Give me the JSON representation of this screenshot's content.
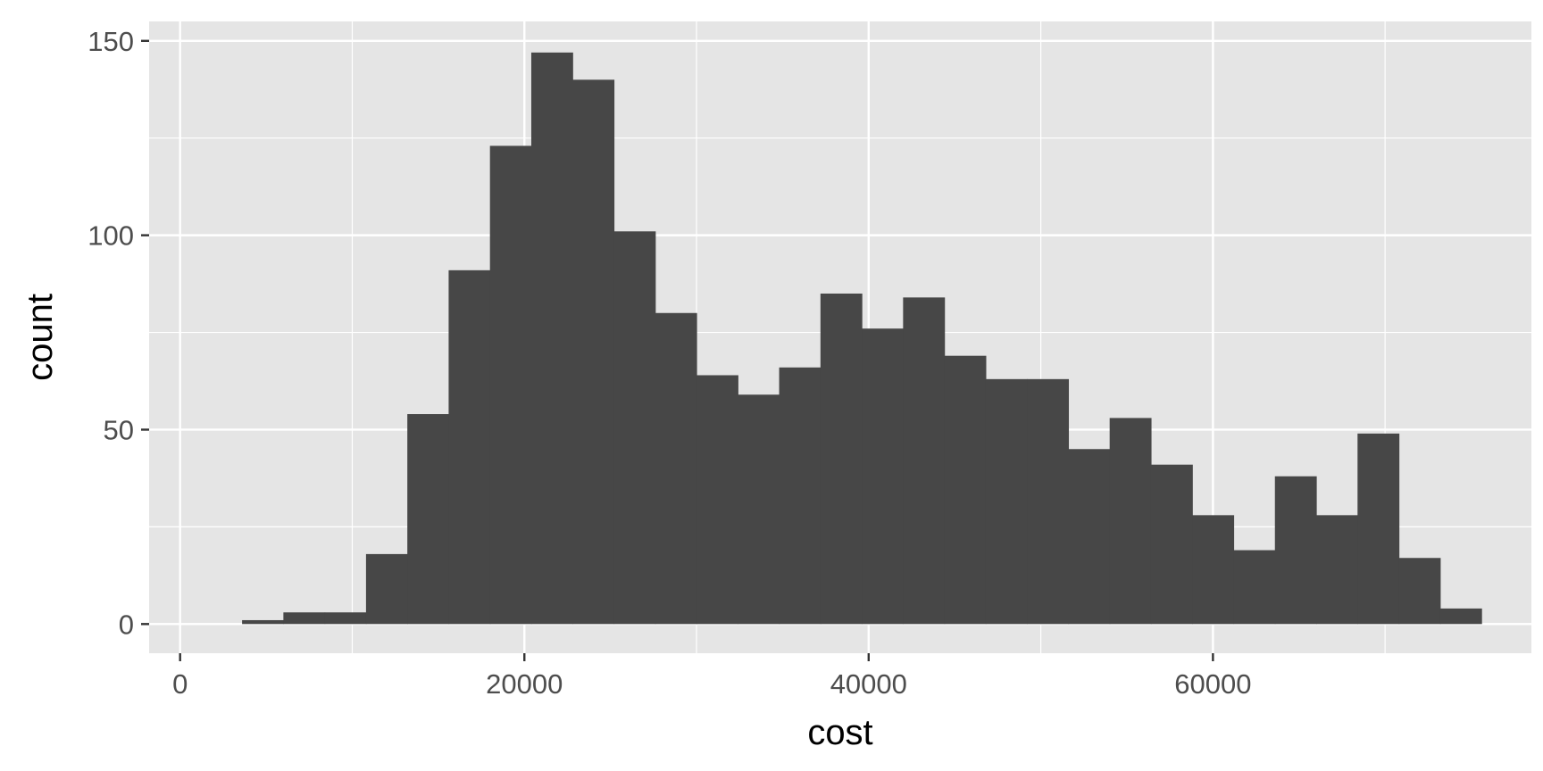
{
  "chart_data": {
    "type": "bar",
    "subtype": "histogram",
    "title": "",
    "xlabel": "cost",
    "ylabel": "count",
    "xlim": [
      -1800,
      78500
    ],
    "ylim": [
      -7.5,
      155
    ],
    "x_ticks": [
      0,
      20000,
      40000,
      60000
    ],
    "y_ticks": [
      0,
      50,
      100,
      150
    ],
    "x_tick_labels": [
      "0",
      "20000",
      "40000",
      "60000"
    ],
    "y_tick_labels": [
      "0",
      "50",
      "100",
      "150"
    ],
    "binwidth": 2400,
    "bin_starts": [
      3600,
      6000,
      8400,
      10800,
      13200,
      15600,
      18000,
      20400,
      22800,
      25200,
      27600,
      30000,
      32400,
      34800,
      37200,
      39600,
      42000,
      44400,
      46800,
      49200,
      51600,
      54000,
      56400,
      58800,
      61200,
      63600,
      66000,
      68400,
      70800,
      73200
    ],
    "values": [
      1,
      3,
      3,
      18,
      54,
      91,
      123,
      147,
      140,
      101,
      80,
      64,
      59,
      66,
      85,
      76,
      84,
      69,
      63,
      63,
      45,
      53,
      41,
      28,
      19,
      38,
      28,
      49,
      17,
      4
    ],
    "grid": true,
    "colors": {
      "bar": "#474747",
      "panel": "#e5e5e5",
      "grid": "#ffffff",
      "tick_label": "#4d4d4d",
      "axis_title": "#000000",
      "tick_mark": "#333333"
    }
  }
}
